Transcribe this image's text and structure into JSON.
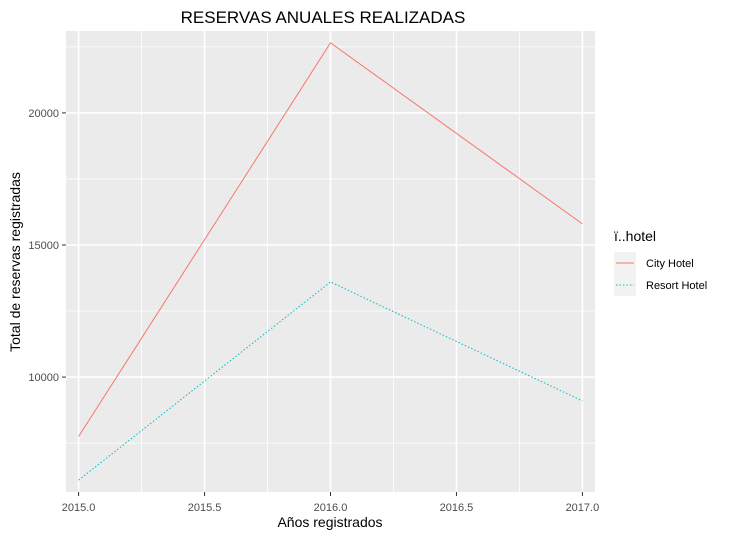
{
  "chart_data": {
    "type": "line",
    "title": "RESERVAS ANUALES REALIZADAS",
    "xlabel": "Años registrados",
    "ylabel": "Total de reservas registradas",
    "x": [
      2015,
      2016,
      2017
    ],
    "series": [
      {
        "name": "City Hotel",
        "values": [
          7750,
          22650,
          15800
        ],
        "color": "#F8766D",
        "dash": "solid"
      },
      {
        "name": "Resort Hotel",
        "values": [
          6100,
          13600,
          9100
        ],
        "color": "#00BFC4",
        "dash": "dotted"
      }
    ],
    "xlim": [
      2014.95,
      2017.05
    ],
    "ylim": [
      5650,
      23100
    ],
    "xticks": [
      2015,
      2015.5,
      2016,
      2016.5,
      2017
    ],
    "xtick_labels": [
      "2015.0",
      "2015.5",
      "2016.0",
      "2016.5",
      "2017.0"
    ],
    "yticks": [
      10000,
      15000,
      20000
    ],
    "ytick_labels": [
      "10000",
      "15000",
      "20000"
    ],
    "y_minor_ticks": [
      7500,
      12500,
      17500,
      22500
    ],
    "x_minor_ticks": [
      2015.25,
      2015.75,
      2016.25,
      2016.75
    ],
    "grid": true,
    "panel_background": "#EBEBEB",
    "grid_color": "#FFFFFF",
    "legend": {
      "title": "ï..hotel",
      "placement": "right"
    }
  }
}
